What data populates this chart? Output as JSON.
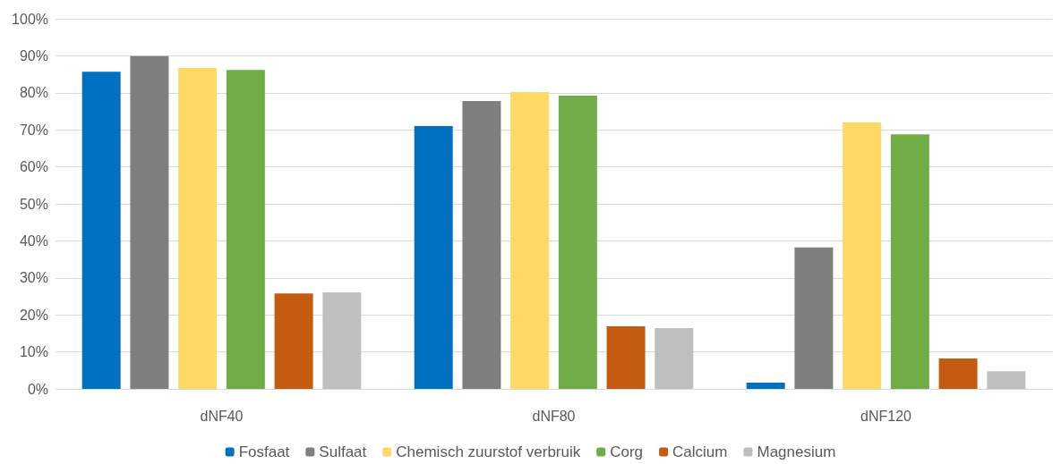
{
  "chart_data": {
    "type": "bar",
    "categories": [
      "dNF40",
      "dNF80",
      "dNF120"
    ],
    "series": [
      {
        "name": "Fosfaat",
        "color": "#0070c0",
        "values": [
          85.7,
          71.0,
          1.7
        ]
      },
      {
        "name": "Sulfaat",
        "color": "#7f7f7f",
        "values": [
          89.9,
          77.8,
          38.2
        ]
      },
      {
        "name": "Chemisch zuurstof verbruik",
        "color": "#ffd966",
        "values": [
          86.7,
          80.2,
          72.0
        ]
      },
      {
        "name": "Corg",
        "color": "#70ad47",
        "values": [
          86.2,
          79.2,
          68.8
        ]
      },
      {
        "name": "Calcium",
        "color": "#c55a11",
        "values": [
          25.8,
          16.9,
          8.2
        ]
      },
      {
        "name": "Magnesium",
        "color": "#bfbfbf",
        "values": [
          26.1,
          16.4,
          4.8
        ]
      }
    ],
    "ylim": [
      0,
      100
    ],
    "yticks": [
      {
        "value": 0,
        "label": "0%"
      },
      {
        "value": 10,
        "label": "10%"
      },
      {
        "value": 20,
        "label": "20%"
      },
      {
        "value": 30,
        "label": "30%"
      },
      {
        "value": 40,
        "label": "40%"
      },
      {
        "value": 50,
        "label": "50%"
      },
      {
        "value": 60,
        "label": "60%"
      },
      {
        "value": 70,
        "label": "70%"
      },
      {
        "value": 80,
        "label": "80%"
      },
      {
        "value": 90,
        "label": "90%"
      },
      {
        "value": 100,
        "label": "100%"
      }
    ],
    "grid": "y",
    "legend": "bottom"
  }
}
